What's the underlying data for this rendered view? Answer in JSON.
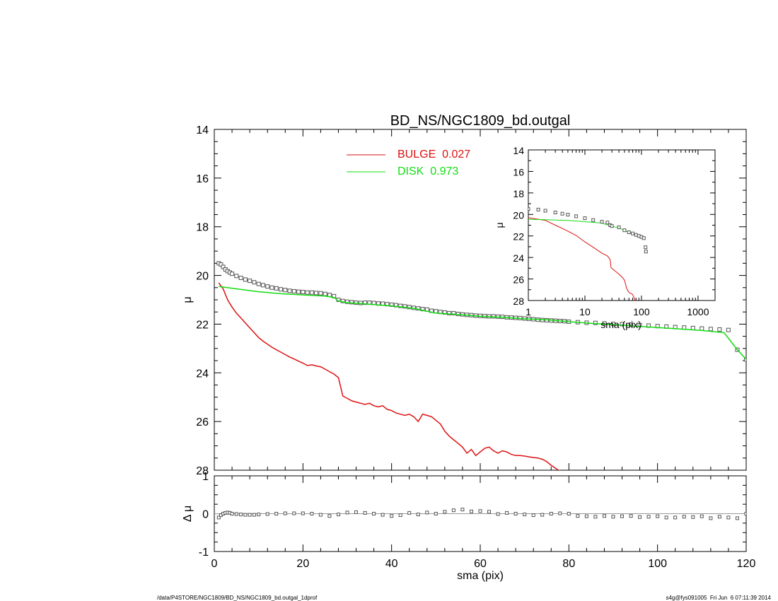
{
  "chart_data": [
    {
      "type": "line",
      "title": "BD_NS/NGC1809_bd.outgal",
      "xlabel": "",
      "ylabel": "μ",
      "xlim": [
        0,
        120
      ],
      "ylim": [
        28,
        14
      ],
      "yticks": [
        "14",
        "16",
        "18",
        "20",
        "22",
        "24",
        "26",
        "28"
      ],
      "legend": {
        "placement": "top-center",
        "entries": [
          {
            "label": "BULGE  0.027",
            "color": "#dd1111"
          },
          {
            "label": "DISK  0.973",
            "color": "#11dd11"
          }
        ]
      },
      "series": [
        {
          "name": "data",
          "marker": "square",
          "color": "#555555",
          "x": [
            1,
            1.5,
            2,
            2.5,
            3,
            3.5,
            4,
            5,
            6,
            7,
            8,
            9,
            10,
            11,
            12,
            13,
            14,
            15,
            16,
            17,
            18,
            19,
            20,
            21,
            22,
            23,
            24,
            25,
            26,
            27,
            28,
            29,
            30,
            31,
            32,
            33,
            34,
            35,
            36,
            37,
            38,
            39,
            40,
            41,
            42,
            43,
            44,
            45,
            46,
            47,
            48,
            49,
            50,
            51,
            52,
            53,
            54,
            55,
            56,
            57,
            58,
            59,
            60,
            61,
            62,
            63,
            64,
            65,
            66,
            67,
            68,
            69,
            70,
            71,
            72,
            73,
            74,
            75,
            76,
            77,
            78,
            79,
            80,
            82,
            84,
            86,
            88,
            90,
            92,
            94,
            96,
            98,
            100,
            102,
            104,
            106,
            108,
            110,
            112,
            114,
            116,
            118,
            120
          ],
          "y": [
            19.5,
            19.55,
            19.65,
            19.75,
            19.82,
            19.88,
            19.93,
            20.02,
            20.1,
            20.17,
            20.22,
            20.28,
            20.35,
            20.4,
            20.45,
            20.5,
            20.53,
            20.57,
            20.6,
            20.63,
            20.65,
            20.67,
            20.68,
            20.7,
            20.7,
            20.72,
            20.73,
            20.76,
            20.8,
            20.85,
            21.0,
            21.05,
            21.08,
            21.1,
            21.12,
            21.13,
            21.12,
            21.12,
            21.13,
            21.15,
            21.16,
            21.18,
            21.2,
            21.22,
            21.25,
            21.27,
            21.3,
            21.33,
            21.35,
            21.38,
            21.4,
            21.45,
            21.47,
            21.5,
            21.52,
            21.55,
            21.55,
            21.58,
            21.6,
            21.62,
            21.63,
            21.65,
            21.66,
            21.67,
            21.68,
            21.68,
            21.69,
            21.7,
            21.72,
            21.73,
            21.74,
            21.75,
            21.77,
            21.78,
            21.8,
            21.82,
            21.83,
            21.84,
            21.85,
            21.86,
            21.87,
            21.88,
            21.9,
            21.92,
            21.94,
            21.95,
            21.97,
            21.99,
            22.0,
            22.02,
            22.04,
            22.06,
            22.08,
            22.1,
            22.12,
            22.14,
            22.16,
            22.18,
            22.2,
            22.22,
            22.24,
            23.05,
            23.45
          ]
        },
        {
          "name": "BULGE",
          "color": "#dd1111",
          "x": [
            1,
            2,
            3,
            4,
            5,
            6,
            7,
            8,
            9,
            10,
            11,
            12,
            13,
            14,
            15,
            16,
            17,
            18,
            19,
            20,
            21,
            22,
            23,
            24,
            25,
            26,
            27,
            28,
            29,
            30,
            31,
            32,
            33,
            34,
            35,
            36,
            37,
            38,
            39,
            40,
            41,
            42,
            43,
            44,
            45,
            46,
            47,
            48,
            49,
            50,
            51,
            52,
            53,
            54,
            55,
            56,
            57,
            58,
            59,
            60,
            61,
            62,
            63,
            64,
            65,
            66,
            67,
            68,
            69,
            70,
            71,
            72,
            73,
            74,
            75,
            76,
            77,
            78,
            79,
            80,
            81,
            82,
            83
          ],
          "y": [
            20.3,
            20.55,
            21.0,
            21.3,
            21.55,
            21.75,
            21.95,
            22.15,
            22.35,
            22.55,
            22.7,
            22.82,
            22.95,
            23.05,
            23.15,
            23.25,
            23.35,
            23.43,
            23.52,
            23.6,
            23.7,
            23.67,
            23.72,
            23.75,
            23.85,
            23.95,
            24.05,
            24.2,
            24.95,
            25.05,
            25.15,
            25.2,
            25.25,
            25.3,
            25.25,
            25.35,
            25.4,
            25.35,
            25.5,
            25.55,
            25.65,
            25.7,
            25.75,
            25.7,
            25.8,
            26.0,
            25.7,
            25.75,
            25.8,
            25.95,
            26.1,
            26.4,
            26.6,
            26.75,
            26.9,
            27.05,
            27.3,
            27.15,
            27.4,
            27.25,
            27.1,
            27.05,
            27.2,
            27.3,
            27.2,
            27.25,
            27.35,
            27.4,
            27.4,
            27.42,
            27.45,
            27.48,
            27.5,
            27.55,
            27.65,
            27.8,
            27.92,
            28.05,
            28.2,
            28.35,
            28.5,
            28.65,
            28.8
          ]
        },
        {
          "name": "DISK",
          "color": "#11dd11",
          "x": [
            1,
            5,
            10,
            15,
            20,
            25,
            27,
            28,
            30,
            35,
            40,
            45,
            50,
            55,
            60,
            65,
            70,
            75,
            80,
            85,
            90,
            95,
            100,
            105,
            110,
            115,
            118,
            120
          ],
          "y": [
            20.45,
            20.55,
            20.67,
            20.75,
            20.8,
            20.85,
            20.9,
            21.05,
            21.12,
            21.18,
            21.25,
            21.35,
            21.55,
            21.6,
            21.68,
            21.72,
            21.78,
            21.82,
            21.9,
            21.97,
            22.02,
            22.08,
            22.14,
            22.2,
            22.26,
            22.35,
            23.05,
            23.45
          ]
        }
      ]
    },
    {
      "type": "line",
      "title": "",
      "xlabel": "sma (pix)",
      "ylabel": "μ",
      "xscale": "log",
      "xlim": [
        1,
        2000
      ],
      "ylim": [
        28,
        14
      ],
      "xticks": [
        "1",
        "10",
        "100",
        "1000"
      ],
      "yticks": [
        "14",
        "16",
        "18",
        "20",
        "22",
        "24",
        "26",
        "28"
      ],
      "placement": "inset top-right",
      "series": [
        {
          "name": "data",
          "marker": "square",
          "color": "#555555",
          "x": [
            1,
            1.5,
            2,
            3,
            4,
            5,
            7,
            10,
            14,
            20,
            25,
            28,
            30,
            40,
            50,
            60,
            70,
            80,
            90,
            100,
            110,
            118,
            120
          ],
          "y": [
            19.5,
            19.55,
            19.65,
            19.82,
            19.93,
            20.02,
            20.17,
            20.35,
            20.53,
            20.68,
            20.76,
            21.0,
            21.08,
            21.2,
            21.47,
            21.66,
            21.77,
            21.9,
            22.0,
            22.1,
            22.2,
            23.05,
            23.45
          ]
        },
        {
          "name": "BULGE",
          "color": "#dd1111",
          "x": [
            1,
            2,
            3,
            4,
            5,
            7,
            10,
            14,
            20,
            25,
            28,
            29,
            35,
            40,
            45,
            50,
            55,
            60,
            70,
            80
          ],
          "y": [
            20.3,
            20.55,
            21.0,
            21.3,
            21.55,
            21.95,
            22.55,
            23.05,
            23.6,
            23.85,
            24.2,
            24.95,
            25.3,
            25.55,
            25.8,
            26.1,
            26.9,
            27.25,
            27.45,
            28.2
          ]
        },
        {
          "name": "DISK",
          "color": "#11dd11",
          "x": [
            1,
            5,
            10,
            20,
            28,
            40,
            60,
            80
          ],
          "y": [
            20.45,
            20.55,
            20.67,
            20.8,
            21.05,
            21.25,
            21.68,
            21.9
          ]
        }
      ]
    },
    {
      "type": "scatter",
      "title": "",
      "xlabel": "sma (pix)",
      "ylabel": "Δ μ",
      "xlim": [
        0,
        120
      ],
      "ylim": [
        -1,
        1
      ],
      "xticks": [
        "0",
        "20",
        "40",
        "60",
        "80",
        "100",
        "120"
      ],
      "yticks": [
        "1",
        "0",
        "-1"
      ],
      "series": [
        {
          "name": "residual",
          "marker": "square",
          "color": "#555555",
          "x": [
            1,
            1.5,
            2,
            2.5,
            3,
            3.5,
            4,
            5,
            6,
            7,
            8,
            9,
            10,
            12,
            14,
            16,
            18,
            20,
            22,
            24,
            26,
            28,
            30,
            32,
            34,
            36,
            38,
            40,
            42,
            44,
            46,
            48,
            50,
            52,
            54,
            56,
            58,
            60,
            62,
            64,
            66,
            68,
            70,
            72,
            74,
            76,
            78,
            80,
            82,
            84,
            86,
            88,
            90,
            92,
            94,
            96,
            98,
            100,
            102,
            104,
            106,
            108,
            110,
            112,
            114,
            116,
            118,
            120
          ],
          "y": [
            -0.1,
            -0.04,
            0.0,
            0.02,
            0.03,
            0.02,
            0.0,
            -0.01,
            -0.02,
            -0.03,
            -0.03,
            -0.03,
            -0.02,
            -0.01,
            0.0,
            0.01,
            0.01,
            0.01,
            0.0,
            -0.03,
            -0.06,
            -0.02,
            0.03,
            0.04,
            0.02,
            0.0,
            -0.03,
            -0.06,
            -0.04,
            0.02,
            -0.02,
            0.03,
            0.0,
            0.05,
            0.09,
            0.11,
            0.06,
            0.07,
            0.05,
            -0.01,
            0.02,
            0.0,
            -0.02,
            -0.04,
            -0.03,
            0.0,
            0.01,
            0.0,
            -0.06,
            -0.07,
            -0.08,
            -0.06,
            -0.08,
            -0.07,
            -0.06,
            -0.09,
            -0.08,
            -0.07,
            -0.1,
            -0.1,
            -0.08,
            -0.09,
            -0.07,
            -0.12,
            -0.08,
            -0.1,
            -0.12,
            0.0
          ]
        },
        {
          "name": "zero",
          "color": "#999999",
          "x": [
            0,
            120
          ],
          "y": [
            0,
            0
          ]
        }
      ]
    }
  ],
  "footer": {
    "left": "/data/P4STORE/NGC1809/BD_NS/NGC1809_bd.outgal_1dprof",
    "right": "s4g@fys091005  Fri Jun  6 07:11:39 2014"
  }
}
